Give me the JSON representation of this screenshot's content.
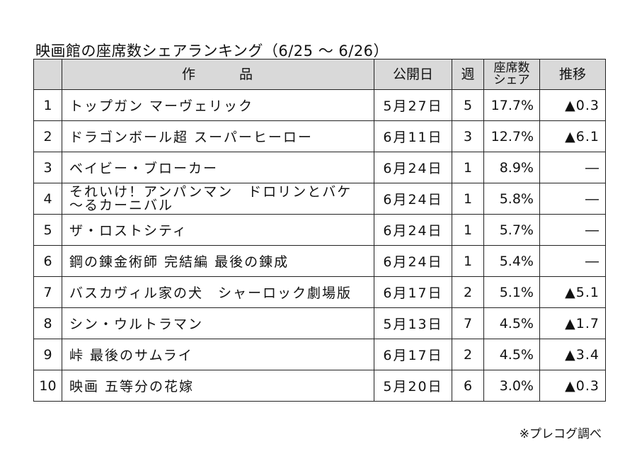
{
  "title": "映画館の座席数シェアランキング（6/25 ～ 6/26）",
  "headers": {
    "rank": "",
    "work_part1": "作",
    "work_part2": "品",
    "open_date": "公開日",
    "week": "週",
    "share_line1": "座席数",
    "share_line2": "シェア",
    "change": "推移"
  },
  "rows": [
    {
      "rank": "1",
      "title": "トップガン マーヴェリック",
      "open_date": "5月27日",
      "week": "5",
      "share": "17.7%",
      "change": "▲0.3"
    },
    {
      "rank": "2",
      "title": "ドラゴンボール超 スーパーヒーロー",
      "open_date": "6月11日",
      "week": "3",
      "share": "12.7%",
      "change": "▲6.1"
    },
    {
      "rank": "3",
      "title": "ベイビー・ブローカー",
      "open_date": "6月24日",
      "week": "1",
      "share": "8.9%",
      "change": "―"
    },
    {
      "rank": "4",
      "title_line1": "それいけ！アンパンマン　ドロリンとバケ",
      "title_line2": "～るカーニバル",
      "open_date": "6月24日",
      "week": "1",
      "share": "5.8%",
      "change": "―"
    },
    {
      "rank": "5",
      "title": "ザ・ロストシティ",
      "open_date": "6月24日",
      "week": "1",
      "share": "5.7%",
      "change": "―"
    },
    {
      "rank": "6",
      "title": "鋼の錬金術師 完結編 最後の錬成",
      "open_date": "6月24日",
      "week": "1",
      "share": "5.4%",
      "change": "―"
    },
    {
      "rank": "7",
      "title": "バスカヴィル家の犬　シャーロック劇場版",
      "open_date": "6月17日",
      "week": "2",
      "share": "5.1%",
      "change": "▲5.1"
    },
    {
      "rank": "8",
      "title": "シン・ウルトラマン",
      "open_date": "5月13日",
      "week": "7",
      "share": "4.5%",
      "change": "▲1.7"
    },
    {
      "rank": "9",
      "title": "峠 最後のサムライ",
      "open_date": "6月17日",
      "week": "2",
      "share": "4.5%",
      "change": "▲3.4"
    },
    {
      "rank": "10",
      "title": "映画 五等分の花嫁",
      "open_date": "5月20日",
      "week": "6",
      "share": "3.0%",
      "change": "▲0.3"
    }
  ],
  "source": "※プレコグ調べ"
}
